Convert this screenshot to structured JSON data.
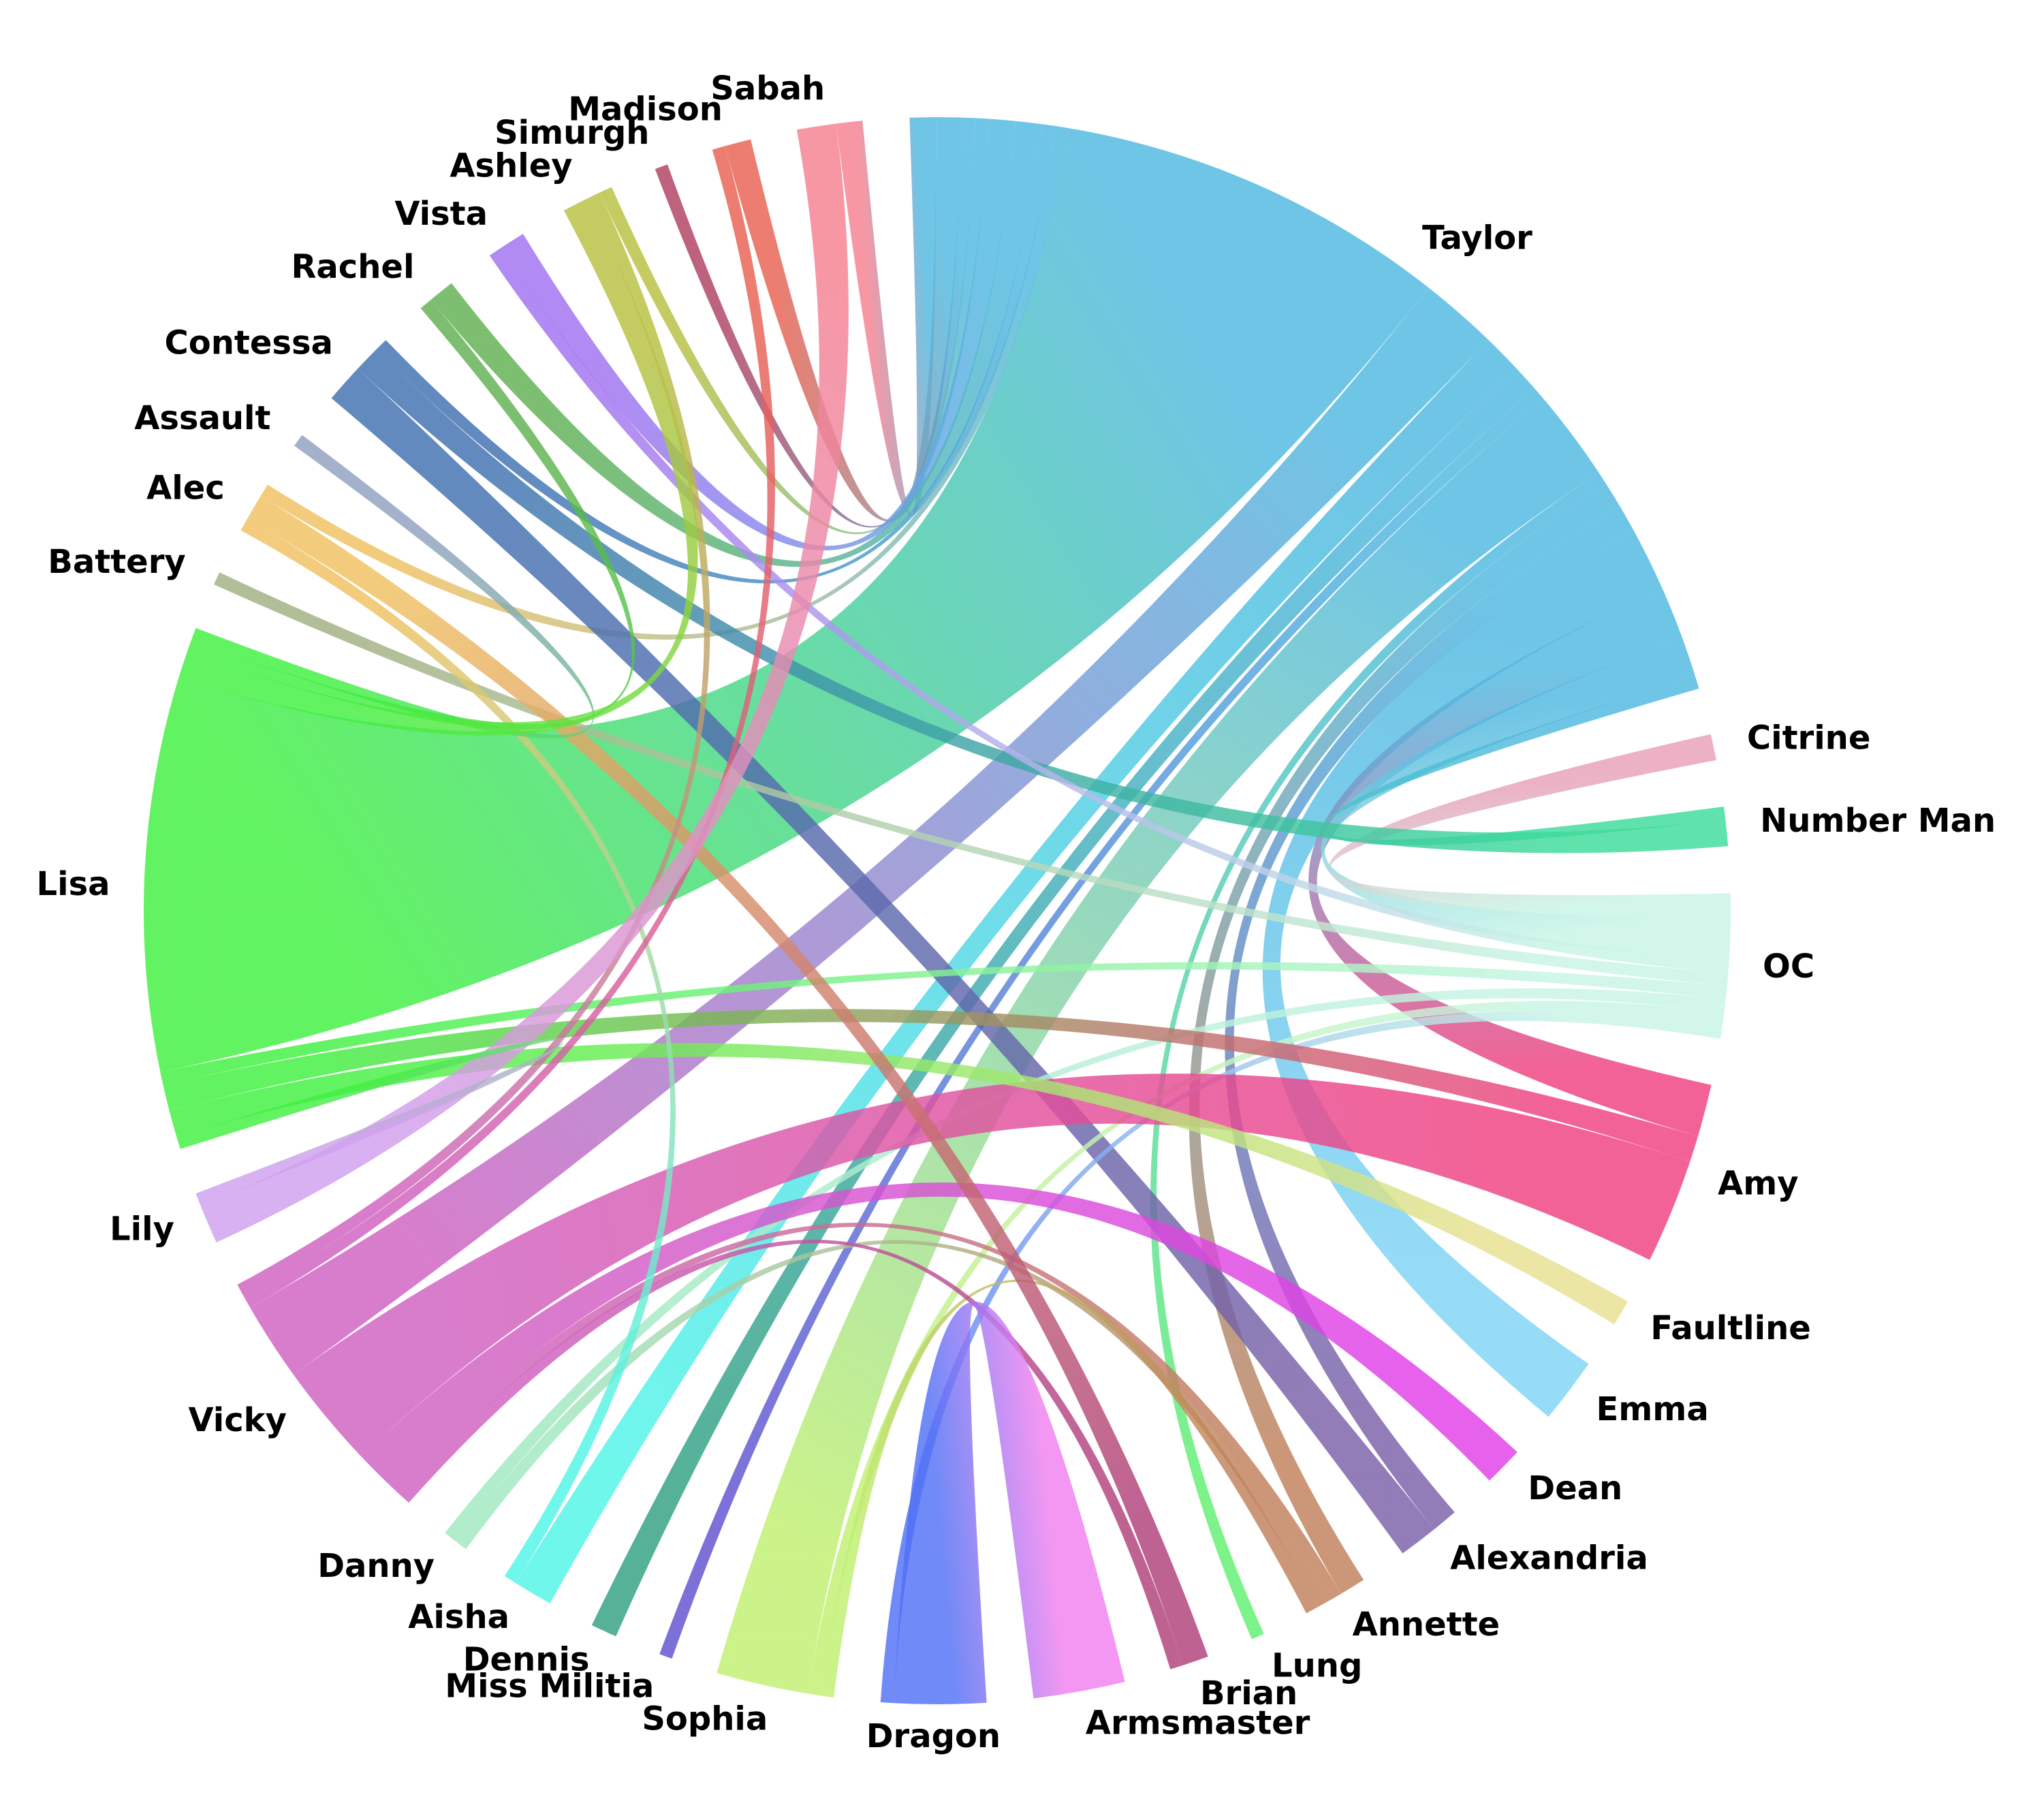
{
  "chart_data": {
    "type": "chord",
    "nodes": [
      {
        "name": "Taylor",
        "color": "#4fb8e0"
      },
      {
        "name": "Citrine",
        "color": "#e8a0b8"
      },
      {
        "name": "Number Man",
        "color": "#3ddc9a"
      },
      {
        "name": "OC",
        "color": "#c8f5e6"
      },
      {
        "name": "Amy",
        "color": "#f0407f"
      },
      {
        "name": "Faultline",
        "color": "#e8e090"
      },
      {
        "name": "Emma",
        "color": "#80d4f5"
      },
      {
        "name": "Dean",
        "color": "#e040e8"
      },
      {
        "name": "Alexandria",
        "color": "#7a60a8"
      },
      {
        "name": "Annette",
        "color": "#c0805a"
      },
      {
        "name": "Lung",
        "color": "#60f070"
      },
      {
        "name": "Brian",
        "color": "#b0407a"
      },
      {
        "name": "Armsmaster",
        "color": "#f080f0"
      },
      {
        "name": "Dragon",
        "color": "#5070f5"
      },
      {
        "name": "Sophia",
        "color": "#c0f070"
      },
      {
        "name": "Miss Militia",
        "color": "#6050d0"
      },
      {
        "name": "Dennis",
        "color": "#30a080"
      },
      {
        "name": "Aisha",
        "color": "#50f5e8"
      },
      {
        "name": "Danny",
        "color": "#a0e8c0"
      },
      {
        "name": "Vicky",
        "color": "#d060c0"
      },
      {
        "name": "Lily",
        "color": "#d0a0f0"
      },
      {
        "name": "Lisa",
        "color": "#40f040"
      },
      {
        "name": "Battery",
        "color": "#a0b080"
      },
      {
        "name": "Alec",
        "color": "#f0c060"
      },
      {
        "name": "Assault",
        "color": "#90a0c0"
      },
      {
        "name": "Contessa",
        "color": "#4070b0"
      },
      {
        "name": "Rachel",
        "color": "#60b050"
      },
      {
        "name": "Vista",
        "color": "#a070f0"
      },
      {
        "name": "Ashley",
        "color": "#b8c040"
      },
      {
        "name": "Simurgh",
        "color": "#b04060"
      },
      {
        "name": "Madison",
        "color": "#e86050"
      },
      {
        "name": "Sabah",
        "color": "#f58090"
      }
    ],
    "links": [
      {
        "source": "Taylor",
        "target": "Lisa",
        "value": 30
      },
      {
        "source": "Taylor",
        "target": "Vicky",
        "value": 6
      },
      {
        "source": "Taylor",
        "target": "Emma",
        "value": 5
      },
      {
        "source": "Taylor",
        "target": "Aisha",
        "value": 3
      },
      {
        "source": "Taylor",
        "target": "Dennis",
        "value": 2
      },
      {
        "source": "Taylor",
        "target": "Sophia",
        "value": 7
      },
      {
        "source": "Taylor",
        "target": "Amy",
        "value": 4
      },
      {
        "source": "Taylor",
        "target": "Annette",
        "value": 2
      },
      {
        "source": "Taylor",
        "target": "Lung",
        "value": 1
      },
      {
        "source": "Taylor",
        "target": "Miss Militia",
        "value": 1
      },
      {
        "source": "Taylor",
        "target": "Sabah",
        "value": 2
      },
      {
        "source": "Taylor",
        "target": "Madison",
        "value": 2
      },
      {
        "source": "Taylor",
        "target": "Simurgh",
        "value": 1
      },
      {
        "source": "Taylor",
        "target": "Ashley",
        "value": 1
      },
      {
        "source": "Taylor",
        "target": "Vista",
        "value": 2
      },
      {
        "source": "Taylor",
        "target": "Rachel",
        "value": 2
      },
      {
        "source": "Taylor",
        "target": "Alexandria",
        "value": 2
      },
      {
        "source": "Taylor",
        "target": "OC",
        "value": 3
      },
      {
        "source": "Taylor",
        "target": "Contessa",
        "value": 1
      },
      {
        "source": "Taylor",
        "target": "Number Man",
        "value": 1
      },
      {
        "source": "Taylor",
        "target": "Alec",
        "value": 1
      },
      {
        "source": "Citrine",
        "target": "OC",
        "value": 2
      },
      {
        "source": "Contessa",
        "target": "Number Man",
        "value": 2
      },
      {
        "source": "Contessa",
        "target": "Alexandria",
        "value": 3
      },
      {
        "source": "OC",
        "target": "Vista",
        "value": 1
      },
      {
        "source": "OC",
        "target": "Danny",
        "value": 1
      },
      {
        "source": "OC",
        "target": "Sophia",
        "value": 1
      },
      {
        "source": "OC",
        "target": "Dragon",
        "value": 1
      },
      {
        "source": "OC",
        "target": "Lisa",
        "value": 1
      },
      {
        "source": "OC",
        "target": "Battery",
        "value": 1
      },
      {
        "source": "Amy",
        "target": "Vicky",
        "value": 8
      },
      {
        "source": "Amy",
        "target": "Lisa",
        "value": 2
      },
      {
        "source": "Faultline",
        "target": "Lisa",
        "value": 2
      },
      {
        "source": "Dean",
        "target": "Vicky",
        "value": 3
      },
      {
        "source": "Annette",
        "target": "Danny",
        "value": 1
      },
      {
        "source": "Annette",
        "target": "Vicky",
        "value": 1
      },
      {
        "source": "Annette",
        "target": "Sophia",
        "value": 1
      },
      {
        "source": "Brian",
        "target": "Alec",
        "value": 2
      },
      {
        "source": "Brian",
        "target": "Vicky",
        "value": 1
      },
      {
        "source": "Armsmaster",
        "target": "Dragon",
        "value": 7
      },
      {
        "source": "Aisha",
        "target": "Alec",
        "value": 1
      },
      {
        "source": "Vicky",
        "target": "Ashley",
        "value": 1
      },
      {
        "source": "Vicky",
        "target": "Madison",
        "value": 1
      },
      {
        "source": "Lily",
        "target": "Sabah",
        "value": 3
      },
      {
        "source": "Lily",
        "target": "Lisa",
        "value": 1
      },
      {
        "source": "Lisa",
        "target": "Assault",
        "value": 1
      },
      {
        "source": "Lisa",
        "target": "Rachel",
        "value": 1
      },
      {
        "source": "Lisa",
        "target": "Ashley",
        "value": 2
      }
    ]
  }
}
